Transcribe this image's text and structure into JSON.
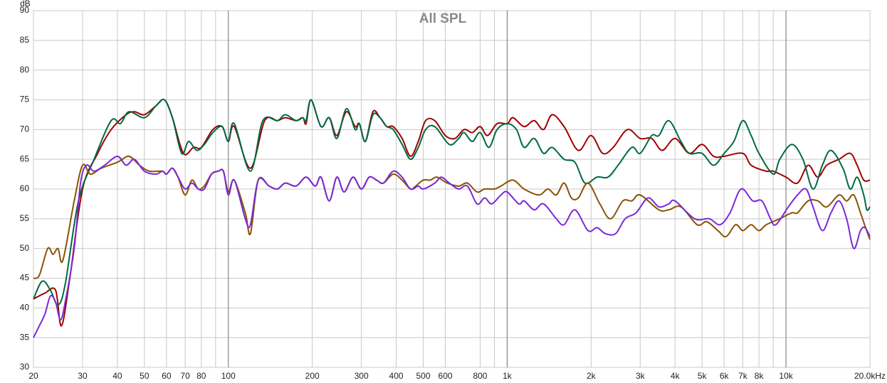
{
  "chart_data": {
    "type": "line",
    "title": "All SPL",
    "y_label": "dB",
    "log_x": true,
    "grid": true,
    "xlim": [
      20,
      20000
    ],
    "ylim": [
      30,
      90
    ],
    "yticks": [
      30,
      35,
      40,
      45,
      50,
      55,
      60,
      65,
      70,
      75,
      80,
      85,
      90
    ],
    "xticks": [
      20,
      30,
      40,
      50,
      60,
      70,
      80,
      100,
      200,
      300,
      400,
      500,
      600,
      800,
      {
        "value": 1000,
        "label": "1k"
      },
      {
        "value": 2000,
        "label": "2k"
      },
      {
        "value": 3000,
        "label": "3k"
      },
      {
        "value": 4000,
        "label": "4k"
      },
      {
        "value": 5000,
        "label": "5k"
      },
      {
        "value": 6000,
        "label": "6k"
      },
      {
        "value": 7000,
        "label": "7k"
      },
      {
        "value": 8000,
        "label": "8k"
      },
      {
        "value": 10000,
        "label": "10k"
      },
      {
        "value": 20000,
        "label": "20.0kHz"
      }
    ],
    "xminorticks": [
      90,
      900,
      9000
    ],
    "series": [
      {
        "color": "#a00000",
        "x": [
          20,
          22,
          24,
          25.2,
          27,
          30,
          34,
          38,
          43,
          46,
          50,
          55,
          59,
          63,
          69,
          75,
          80,
          88,
          95,
          100,
          105,
          120,
          135,
          150,
          160,
          175,
          185,
          190,
          198,
          215,
          230,
          245,
          265,
          285,
          295,
          310,
          330,
          350,
          370,
          390,
          420,
          450,
          480,
          510,
          550,
          600,
          650,
          700,
          750,
          800,
          850,
          920,
          1000,
          1050,
          1150,
          1250,
          1350,
          1450,
          1600,
          1800,
          2000,
          2200,
          2400,
          2700,
          3000,
          3300,
          3600,
          4000,
          4500,
          5000,
          5500,
          6000,
          7000,
          7500,
          8500,
          9000,
          10000,
          11000,
          12000,
          13000,
          14000,
          15500,
          17000,
          18000,
          19000,
          20000
        ],
        "values": [
          41.5,
          42.5,
          43,
          37,
          45,
          60,
          66,
          70,
          72.5,
          73,
          72.5,
          74,
          75,
          72,
          66,
          67,
          67,
          70,
          70.5,
          68,
          70.5,
          63.5,
          71.5,
          71.5,
          72,
          71.5,
          72,
          71,
          75,
          70.5,
          72,
          69,
          73,
          70.5,
          71,
          68,
          73,
          72,
          70.5,
          70.5,
          68.5,
          65.5,
          68,
          71.5,
          71.5,
          69,
          68.5,
          70,
          69.5,
          70.5,
          69,
          71,
          71,
          72,
          70.5,
          71.5,
          70,
          72.5,
          70.5,
          66.5,
          69,
          66,
          67,
          70,
          68.5,
          68.5,
          66.5,
          68.5,
          66,
          67.5,
          65.5,
          65.5,
          66,
          64,
          63,
          63,
          62,
          61,
          64,
          62,
          64,
          65,
          66,
          64,
          61.5,
          61.5
        ]
      },
      {
        "color": "#006a45",
        "x": [
          20,
          21.5,
          23,
          24.5,
          26,
          29,
          33,
          38,
          41,
          44,
          50,
          55,
          59,
          63,
          68,
          72,
          77,
          82,
          88,
          95,
          100,
          105,
          120,
          133,
          150,
          160,
          175,
          185,
          190,
          198,
          215,
          230,
          245,
          265,
          285,
          295,
          310,
          330,
          350,
          370,
          390,
          420,
          450,
          480,
          510,
          550,
          620,
          670,
          700,
          750,
          800,
          860,
          920,
          1000,
          1080,
          1150,
          1250,
          1350,
          1450,
          1600,
          1750,
          1900,
          2100,
          2300,
          2500,
          2800,
          3000,
          3300,
          3500,
          3800,
          4200,
          4500,
          5000,
          5500,
          6000,
          6500,
          7000,
          7500,
          8000,
          9000,
          9500,
          10500,
          11500,
          12500,
          13500,
          14500,
          16000,
          17000,
          18000,
          19000,
          19500,
          20000
        ],
        "values": [
          41.5,
          44.5,
          43,
          40.5,
          44,
          58,
          65,
          71.5,
          71,
          73,
          72,
          74,
          75,
          72,
          66,
          68,
          66.5,
          67.5,
          69.5,
          70.5,
          68,
          71,
          63,
          71.5,
          71.5,
          72.5,
          71.5,
          72,
          71.5,
          75,
          70.5,
          72,
          68.5,
          73.5,
          70,
          71,
          68,
          72.5,
          72,
          70.5,
          70,
          67.5,
          65,
          67,
          70,
          70.5,
          67.5,
          68.5,
          69.5,
          68,
          69.5,
          67,
          70,
          71,
          70,
          67,
          68.5,
          66,
          67,
          65,
          64.5,
          61,
          62,
          62,
          64,
          67,
          66,
          69,
          69,
          71.5,
          68,
          66,
          66,
          64,
          66,
          68,
          71.5,
          69,
          66,
          62.5,
          65,
          67.5,
          65,
          60,
          64,
          66.5,
          63.5,
          60,
          62,
          59,
          56.5,
          57
        ]
      },
      {
        "color": "#8b5200",
        "x": [
          20,
          21,
          22.5,
          23.5,
          24.5,
          25.5,
          28,
          30,
          32,
          35,
          40,
          44,
          48,
          52,
          58,
          60,
          63,
          66,
          70,
          74,
          78,
          82,
          87,
          92,
          96,
          100,
          105,
          115,
          120,
          128,
          140,
          150,
          160,
          175,
          190,
          205,
          215,
          230,
          245,
          260,
          280,
          300,
          320,
          340,
          360,
          390,
          420,
          450,
          470,
          500,
          530,
          560,
          610,
          670,
          720,
          780,
          830,
          900,
          950,
          1050,
          1150,
          1300,
          1400,
          1500,
          1600,
          1700,
          1800,
          1950,
          2150,
          2350,
          2600,
          2800,
          3000,
          3500,
          3800,
          4200,
          4800,
          5200,
          5700,
          6100,
          6600,
          7000,
          7500,
          8000,
          8500,
          9500,
          10500,
          11000,
          12000,
          13000,
          14000,
          15500,
          16500,
          17500,
          18500,
          19300,
          20000
        ],
        "values": [
          45,
          45.5,
          50,
          49,
          50,
          48,
          58,
          64,
          62.5,
          63.5,
          64.5,
          65.5,
          64,
          63,
          63,
          62.5,
          63.5,
          62,
          59,
          61.5,
          60,
          60.5,
          62.5,
          63,
          63,
          59.5,
          61.5,
          56,
          52.5,
          61.5,
          60.5,
          60,
          61,
          60.5,
          62,
          60.5,
          62,
          58,
          62,
          59.5,
          62,
          60,
          62,
          61.5,
          61,
          62.5,
          61.5,
          60,
          60.5,
          61.5,
          61.5,
          62,
          61,
          60.5,
          61,
          59.5,
          60,
          60,
          60.5,
          61.5,
          60,
          59,
          60,
          59,
          61,
          58.5,
          58.5,
          61,
          57.5,
          55,
          58,
          58,
          59,
          56.5,
          56.5,
          57,
          54,
          54.5,
          53,
          52,
          54,
          53,
          54,
          53,
          54,
          55,
          56,
          56,
          58,
          58,
          57,
          59,
          58,
          59,
          56,
          53.5,
          51.5
        ]
      },
      {
        "color": "#7a2ad6",
        "x": [
          20,
          21,
          22,
          23,
          24,
          25,
          26,
          28,
          29.5,
          31,
          33,
          36,
          40,
          43,
          46,
          50,
          55,
          58,
          60,
          63,
          66,
          70,
          74,
          78,
          82,
          87,
          92,
          96,
          100,
          105,
          115,
          120,
          128,
          140,
          150,
          160,
          175,
          190,
          205,
          215,
          230,
          245,
          260,
          280,
          300,
          320,
          340,
          360,
          390,
          420,
          450,
          480,
          500,
          550,
          580,
          620,
          670,
          720,
          780,
          830,
          880,
          950,
          1000,
          1100,
          1150,
          1250,
          1350,
          1500,
          1600,
          1750,
          1950,
          2100,
          2250,
          2450,
          2650,
          2900,
          3200,
          3500,
          3800,
          4000,
          4700,
          5300,
          5800,
          6300,
          6900,
          7600,
          8200,
          8800,
          9200,
          10200,
          11000,
          11800,
          12500,
          13500,
          14500,
          15500,
          16500,
          17500,
          18500,
          19200,
          20000
        ],
        "values": [
          35,
          37,
          39,
          42,
          41,
          38,
          41,
          50,
          61,
          64,
          63,
          64,
          65.5,
          64,
          65,
          63,
          62.5,
          63,
          62.5,
          63.5,
          62,
          60,
          61,
          60,
          60,
          62.5,
          63,
          63,
          59,
          61.5,
          55,
          54,
          61.5,
          60.5,
          60,
          61,
          60.5,
          62,
          60.5,
          62,
          58,
          62,
          59.5,
          62,
          60,
          62,
          61.5,
          61,
          63,
          62,
          60,
          60.5,
          60,
          61,
          62,
          61,
          60,
          60.5,
          57.5,
          58.5,
          57.5,
          59,
          59.5,
          57.5,
          58,
          56.5,
          57.5,
          55,
          54,
          56.5,
          53,
          53.5,
          52.5,
          52.5,
          55,
          56,
          58.5,
          57,
          57.5,
          58,
          55,
          55,
          54,
          56,
          60,
          58,
          58,
          55,
          54,
          57,
          59,
          60,
          57,
          53,
          56,
          58,
          55,
          50,
          53,
          53.5,
          52
        ]
      }
    ]
  }
}
